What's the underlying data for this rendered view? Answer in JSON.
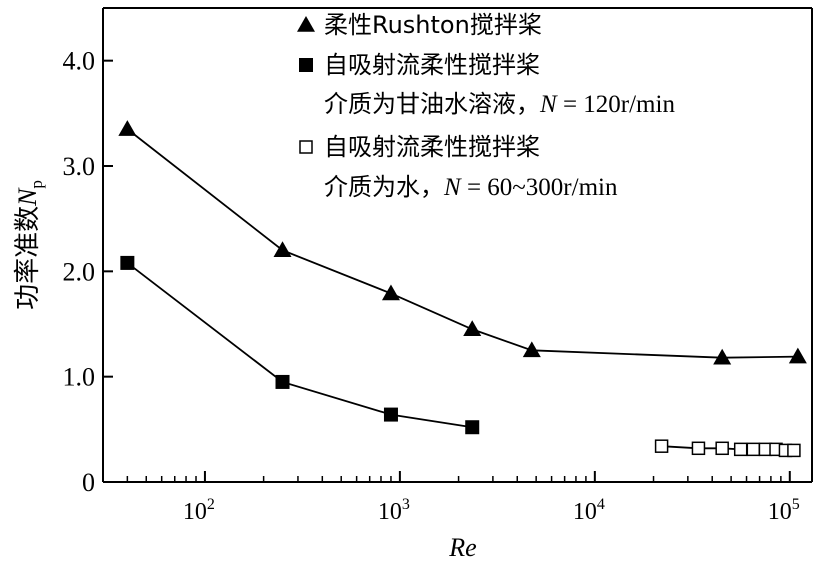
{
  "chart_data": {
    "type": "line",
    "xscale": "log",
    "xlabel": "Re",
    "ylabel": "功率准数",
    "ylabel_symbol": "N",
    "ylabel_subscript": "p",
    "ylim": [
      0,
      4.5
    ],
    "xlim": [
      30,
      130000
    ],
    "yticks": [
      {
        "value": 0,
        "label": "0"
      },
      {
        "value": 1,
        "label": "1.0"
      },
      {
        "value": 2,
        "label": "2.0"
      },
      {
        "value": 3,
        "label": "3.0"
      },
      {
        "value": 4,
        "label": "4.0"
      }
    ],
    "xticks": [
      {
        "value": 100,
        "base": "10",
        "exp": "2"
      },
      {
        "value": 1000,
        "base": "10",
        "exp": "3"
      },
      {
        "value": 10000,
        "base": "10",
        "exp": "4"
      },
      {
        "value": 100000,
        "base": "10",
        "exp": "5"
      }
    ],
    "series": [
      {
        "name": "柔性Rushton搅拌桨",
        "marker": "triangle-filled",
        "connected": true,
        "x": [
          40,
          250,
          900,
          2350,
          4750,
          45000,
          110000
        ],
        "y": [
          3.35,
          2.2,
          1.79,
          1.45,
          1.25,
          1.18,
          1.19
        ]
      },
      {
        "name": "自吸射流柔性搅拌桨",
        "marker": "square-filled",
        "connected": true,
        "x": [
          40,
          250,
          900,
          2350
        ],
        "y": [
          2.08,
          0.95,
          0.64,
          0.52
        ]
      },
      {
        "name": "自吸射流柔性搅拌桨",
        "marker": "square-open",
        "connected": true,
        "x": [
          22000,
          34000,
          45000,
          56000,
          65000,
          75000,
          85000,
          95000,
          105000
        ],
        "y": [
          0.34,
          0.32,
          0.32,
          0.31,
          0.31,
          0.31,
          0.31,
          0.3,
          0.3
        ]
      }
    ],
    "legend": {
      "placement": "top-right",
      "entries": [
        {
          "marker": "triangle-filled",
          "lines": [
            {
              "text": "柔性Rushton搅拌桨"
            }
          ]
        },
        {
          "marker": "square-filled",
          "lines": [
            {
              "text": "自吸射流柔性搅拌桨"
            },
            {
              "text": "介质为甘油水溶液，",
              "symbol": "N",
              "rest": " = 120r/min"
            }
          ]
        },
        {
          "marker": "square-open",
          "lines": [
            {
              "text": "自吸射流柔性搅拌桨"
            },
            {
              "text": "介质为水，",
              "symbol": "N",
              "rest": " = 60~300r/min"
            }
          ]
        }
      ]
    }
  }
}
